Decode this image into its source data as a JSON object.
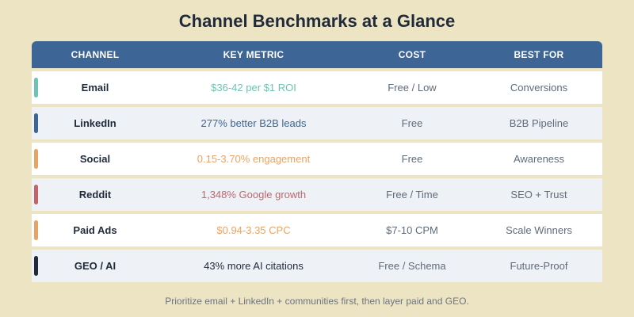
{
  "title": "Channel Benchmarks at a Glance",
  "headers": {
    "channel": "CHANNEL",
    "metric": "KEY METRIC",
    "cost": "COST",
    "best_for": "BEST FOR"
  },
  "rows": [
    {
      "channel": "Email",
      "metric": "$36-42 per $1 ROI",
      "cost": "Free / Low",
      "best_for": "Conversions",
      "color": "#6fc3b2"
    },
    {
      "channel": "LinkedIn",
      "metric": "277% better B2B leads",
      "cost": "Free",
      "best_for": "B2B Pipeline",
      "color": "#3d6596"
    },
    {
      "channel": "Social",
      "metric": "0.15-3.70% engagement",
      "cost": "Free",
      "best_for": "Awareness",
      "color": "#e8a465"
    },
    {
      "channel": "Reddit",
      "metric": "1,348% Google growth",
      "cost": "Free / Time",
      "best_for": "SEO + Trust",
      "color": "#c0656b"
    },
    {
      "channel": "Paid Ads",
      "metric": "$0.94-3.35 CPC",
      "cost": "$7-10 CPM",
      "best_for": "Scale Winners",
      "color": "#e8a465"
    },
    {
      "channel": "GEO / AI",
      "metric": "43% more AI citations",
      "cost": "Free / Schema",
      "best_for": "Future-Proof",
      "color": "#1f2a3a"
    }
  ],
  "footer": "Prioritize email + LinkedIn + communities first, then layer paid and GEO."
}
